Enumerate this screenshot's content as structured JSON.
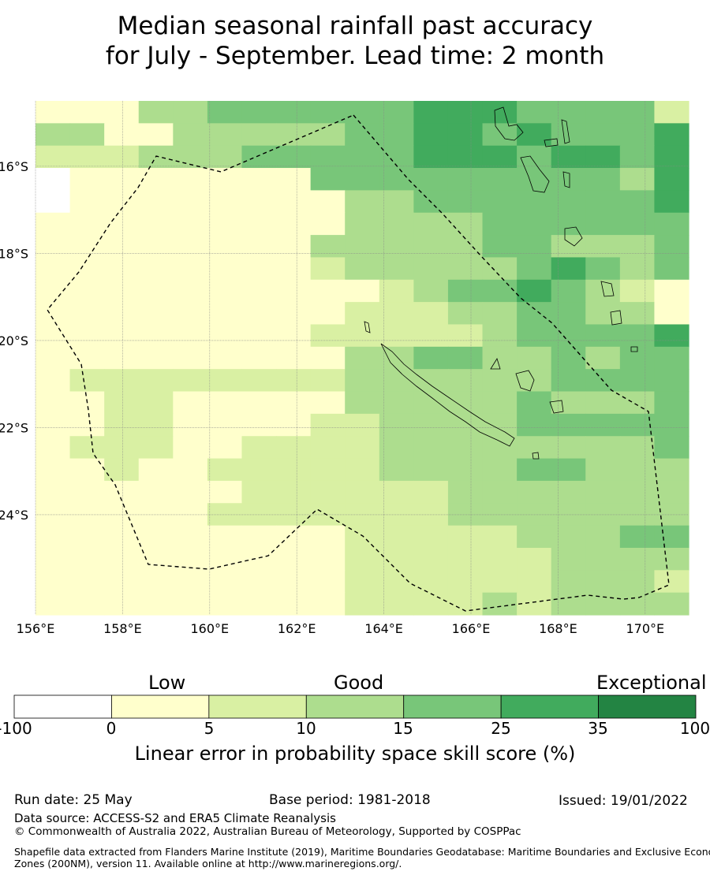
{
  "title": {
    "line1": "Median seasonal rainfall past accuracy",
    "line2": "for July - September. Lead time: 2 month"
  },
  "map": {
    "lon_ticks": [
      "156°E",
      "158°E",
      "160°E",
      "162°E",
      "164°E",
      "166°E",
      "168°E",
      "170°E"
    ],
    "lat_ticks": [
      "16°S",
      "18°S",
      "20°S",
      "22°S",
      "24°S"
    ],
    "lon_range": [
      156,
      171
    ],
    "lat_range": [
      -14.5,
      -26.3
    ],
    "grid": true,
    "levels": [
      "1113344444455544442",
      "3311333334455454445",
      "2223334444455545545",
      "0111111144444444435",
      "0111111113344444445",
      "1111111113333444444",
      "1111111133333443334",
      "1111111123333345434",
      "1111111111234454321",
      "1111111112223344331",
      "1111111122222344445",
      "1111111113344334344",
      "1222222223333334444",
      "1122111113333343334",
      "1122111122333344444",
      "1222112222333333334",
      "1121122222333344333",
      "1111112222223333333",
      "1111122222223333333",
      "1111111112222233344",
      "1111111112222223333",
      "1111111112222223332",
      "1111111112222323333"
    ],
    "level_colors": [
      "#ffffff",
      "#ffffcc",
      "#d9f0a3",
      "#addd8e",
      "#78c679",
      "#41ab5d",
      "#238443"
    ]
  },
  "colorbar": {
    "categories": [
      "Low",
      "Good",
      "Exceptional"
    ],
    "ticks": [
      "-100",
      "0",
      "5",
      "10",
      "15",
      "25",
      "35",
      "100"
    ],
    "label": "Linear error in probability space skill score (%)"
  },
  "footer": {
    "run_date": "Run date: 25 May",
    "base_period": "Base period: 1981-2018",
    "issued": "Issued: 19/01/2022",
    "source": "Data source: ACCESS-S2 and ERA5 Climate Reanalysis",
    "copyright": "© Commonwealth of Australia 2022, Australian Bureau of Meteorology, Supported by COSPPac",
    "shapefile_line1": "Shapefile data extracted from Flanders Marine Institute (2019), Maritime Boundaries Geodatabase: Maritime Boundaries and Exclusive Economic",
    "shapefile_line2": "Zones (200NM), version 11. Available online at http://www.marineregions.org/."
  }
}
